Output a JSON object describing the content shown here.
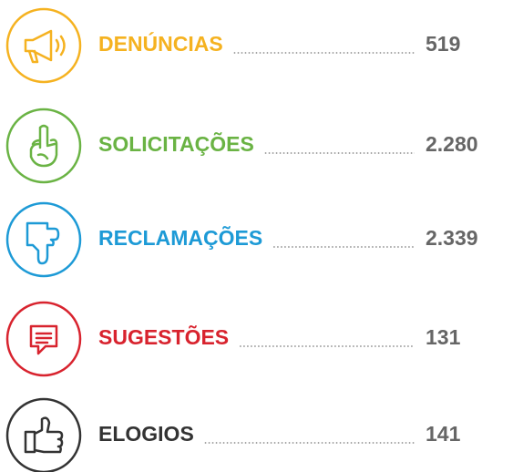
{
  "items": [
    {
      "label": "DENÚNCIAS",
      "value": "519",
      "color": "#f5b220"
    },
    {
      "label": "SOLICITAÇÕES",
      "value": "2.280",
      "color": "#6ab344"
    },
    {
      "label": "RECLAMAÇÕES",
      "value": "2.339",
      "color": "#1d9ad6"
    },
    {
      "label": "SUGESTÕES",
      "value": "131",
      "color": "#d8232e"
    },
    {
      "label": "ELOGIOS",
      "value": "141",
      "color": "#333333"
    }
  ]
}
